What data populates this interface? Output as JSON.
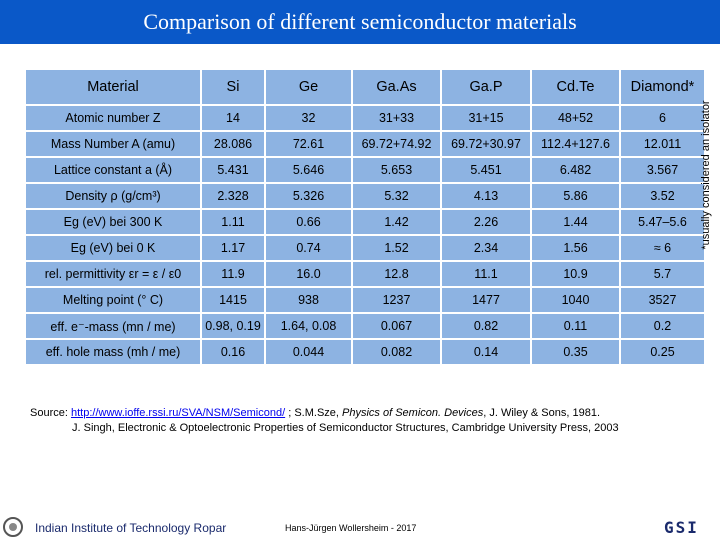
{
  "header": {
    "title": "Comparison of different semiconductor materials"
  },
  "table": {
    "columns": [
      "Material",
      "Si",
      "Ge",
      "Ga.As",
      "Ga.P",
      "Cd.Te",
      "Diamond*"
    ],
    "rows": [
      [
        "Atomic number Z",
        "14",
        "32",
        "31+33",
        "31+15",
        "48+52",
        "6"
      ],
      [
        "Mass Number A (amu)",
        "28.086",
        "72.61",
        "69.72+74.92",
        "69.72+30.97",
        "112.4+127.6",
        "12.011"
      ],
      [
        "Lattice constant a (Å)",
        "5.431",
        "5.646",
        "5.653",
        "5.451",
        "6.482",
        "3.567"
      ],
      [
        "Density ρ (g/cm³)",
        "2.328",
        "5.326",
        "5.32",
        "4.13",
        "5.86",
        "3.52"
      ],
      [
        "Eg (eV) bei 300 K",
        "1.11",
        "0.66",
        "1.42",
        "2.26",
        "1.44",
        "5.47–5.6"
      ],
      [
        "Eg (eV) bei 0 K",
        "1.17",
        "0.74",
        "1.52",
        "2.34",
        "1.56",
        "≈ 6"
      ],
      [
        "rel. permittivity εr = ε / ε0",
        "11.9",
        "16.0",
        "12.8",
        "11.1",
        "10.9",
        "5.7"
      ],
      [
        "Melting point (° C)",
        "1415",
        "938",
        "1237",
        "1477",
        "1040",
        "3527"
      ],
      [
        "eff. e⁻-mass (mn / me)",
        "0.98, 0.19",
        "1.64, 0.08",
        "0.067",
        "0.82",
        "0.11",
        "0.2"
      ],
      [
        "eff. hole mass (mh / me)",
        "0.16",
        "0.044",
        "0.082",
        "0.14",
        "0.35",
        "0.25"
      ]
    ],
    "footnote": "*usually considered an isolator"
  },
  "source": {
    "prefix": "Source:",
    "link": "http://www.ioffe.rssi.ru/SVA/NSM/Semicond/",
    "after_link": "; S.M.Sze,",
    "book": "Physics of Semicon. Devices",
    "publisher": ", J. Wiley & Sons, 1981.",
    "line2": "J. Singh, Electronic & Optoelectronic Properties of Semiconductor Structures, Cambridge University Press, 2003"
  },
  "footer": {
    "institute": "Indian Institute of Technology Ropar",
    "author": "Hans-Jürgen Wollersheim - 2017",
    "logo": "GSI"
  }
}
